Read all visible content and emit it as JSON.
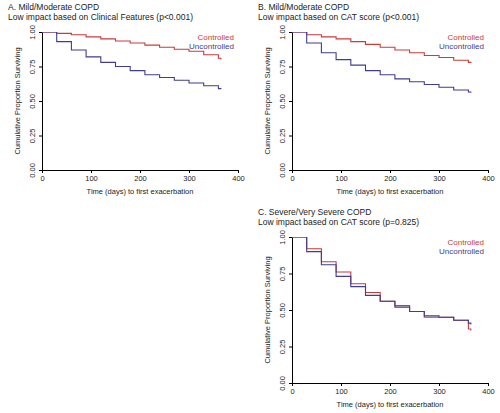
{
  "chart_data": [
    {
      "type": "line",
      "title": "A. Mild/Moderate COPD",
      "subtitle": "Low impact based on Clinical Features (p<0.001)",
      "x_label": "Time (days) to first exacerbation",
      "y_label": "Cumulative Proportion Surviving",
      "x": [
        0,
        30,
        60,
        90,
        120,
        150,
        180,
        210,
        240,
        270,
        300,
        330,
        360,
        365
      ],
      "series": [
        {
          "name": "Controlled",
          "color": "#cc3a3a",
          "line_style": "step",
          "values": [
            1.0,
            0.99,
            0.98,
            0.965,
            0.95,
            0.935,
            0.92,
            0.905,
            0.89,
            0.875,
            0.86,
            0.835,
            0.81,
            0.8
          ]
        },
        {
          "name": "Uncontrolled",
          "color": "#3f3c94",
          "line_style": "step",
          "values": [
            1.0,
            0.93,
            0.87,
            0.82,
            0.78,
            0.75,
            0.72,
            0.69,
            0.67,
            0.65,
            0.63,
            0.61,
            0.59,
            0.585
          ]
        }
      ],
      "xlim": [
        0,
        400
      ],
      "ylim": [
        0,
        1
      ],
      "xticks": [
        0,
        100,
        200,
        300,
        400
      ],
      "yticks": [
        {
          "value": 0,
          "label": "0.00"
        },
        {
          "value": 0.25,
          "label": "0.25"
        },
        {
          "value": 0.5,
          "label": "0.50"
        },
        {
          "value": 0.75,
          "label": "0.75"
        },
        {
          "value": 1,
          "label": "1.00"
        }
      ],
      "legend": "upper right",
      "grid": false
    },
    {
      "type": "line",
      "title": "B. Mild/Moderate COPD",
      "subtitle": "Low impact based on CAT score (p<0.001)",
      "x_label": "Time (days) to first exacerbation",
      "y_label": "Cumulative Proportion Surviving",
      "x": [
        0,
        30,
        60,
        90,
        120,
        150,
        180,
        210,
        240,
        270,
        300,
        330,
        360,
        365
      ],
      "series": [
        {
          "name": "Controlled",
          "color": "#cc3a3a",
          "line_style": "step",
          "values": [
            1.0,
            0.98,
            0.965,
            0.95,
            0.93,
            0.91,
            0.89,
            0.87,
            0.85,
            0.83,
            0.815,
            0.795,
            0.78,
            0.775
          ]
        },
        {
          "name": "Uncontrolled",
          "color": "#3f3c94",
          "line_style": "step",
          "values": [
            1.0,
            0.92,
            0.85,
            0.8,
            0.76,
            0.72,
            0.69,
            0.66,
            0.64,
            0.62,
            0.6,
            0.58,
            0.565,
            0.56
          ]
        }
      ],
      "xlim": [
        0,
        400
      ],
      "ylim": [
        0,
        1
      ],
      "xticks": [
        0,
        100,
        200,
        300,
        400
      ],
      "yticks": [
        {
          "value": 0,
          "label": "0.00"
        },
        {
          "value": 0.25,
          "label": "0.25"
        },
        {
          "value": 0.5,
          "label": "0.50"
        },
        {
          "value": 0.75,
          "label": "0.75"
        },
        {
          "value": 1,
          "label": "1.00"
        }
      ],
      "legend": "upper right",
      "grid": false
    },
    {
      "type": "line",
      "title": "C. Severe/Very Severe COPD",
      "subtitle": "Low impact based on CAT score (p=0.825)",
      "x_label": "Time (days) to first exacerbation",
      "y_label": "Cumulative Proportion Surviving",
      "x": [
        0,
        30,
        60,
        90,
        120,
        150,
        180,
        210,
        240,
        270,
        300,
        330,
        360,
        365
      ],
      "series": [
        {
          "name": "Controlled",
          "color": "#cc3a3a",
          "line_style": "step",
          "values": [
            1.0,
            0.92,
            0.83,
            0.76,
            0.68,
            0.62,
            0.56,
            0.53,
            0.49,
            0.45,
            0.45,
            0.43,
            0.37,
            0.36
          ]
        },
        {
          "name": "Uncontrolled",
          "color": "#3f3c94",
          "line_style": "step",
          "values": [
            1.0,
            0.9,
            0.81,
            0.73,
            0.66,
            0.6,
            0.56,
            0.52,
            0.49,
            0.46,
            0.45,
            0.43,
            0.41,
            0.4
          ]
        }
      ],
      "xlim": [
        0,
        400
      ],
      "ylim": [
        0,
        1
      ],
      "xticks": [
        0,
        100,
        200,
        300,
        400
      ],
      "yticks": [
        {
          "value": 0,
          "label": "0.00"
        },
        {
          "value": 0.25,
          "label": "0.25"
        },
        {
          "value": 0.5,
          "label": "0.50"
        },
        {
          "value": 0.75,
          "label": "0.75"
        },
        {
          "value": 1,
          "label": "1.00"
        }
      ],
      "legend": "upper right",
      "grid": false
    }
  ]
}
